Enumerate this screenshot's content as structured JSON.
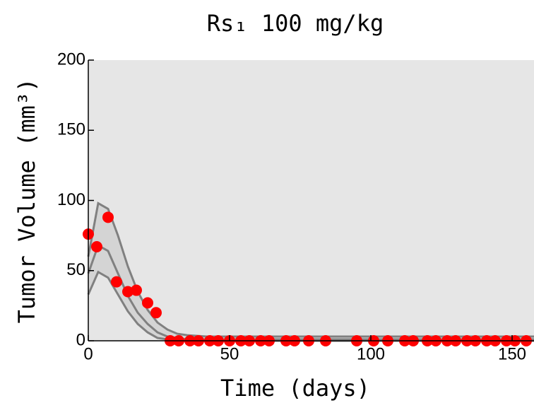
{
  "chart_data": {
    "type": "scatter",
    "title": "Rs₁ 100 mg/kg",
    "x_label": "Time (days)",
    "y_label": "Tumor Volume (mm³)",
    "xlim": [
      0,
      158
    ],
    "ylim": [
      0,
      200
    ],
    "xticks": [
      0,
      50,
      100,
      150
    ],
    "yticks": [
      0,
      50,
      100,
      150,
      200
    ],
    "background": "#e6e6e6",
    "band_color": "#d4d4d4",
    "lines": [
      {
        "color": "#808080",
        "x": [
          0,
          3.5,
          7,
          10.5,
          14,
          17.5,
          21,
          24.5,
          28,
          31.5,
          35,
          42,
          50,
          60,
          80,
          100,
          120,
          140,
          158
        ],
        "values": [
          60,
          98,
          94,
          75,
          53,
          35,
          22,
          13,
          8,
          5,
          4,
          3,
          3,
          3,
          3,
          3,
          3,
          3,
          3
        ]
      },
      {
        "color": "#808080",
        "x": [
          0,
          3.5,
          7,
          10.5,
          14,
          17.5,
          21,
          24.5,
          28,
          31.5,
          35,
          42,
          50,
          60,
          80,
          100,
          120,
          140,
          158
        ],
        "values": [
          48,
          68,
          64,
          48,
          32,
          20,
          12,
          6,
          3,
          2,
          1,
          1,
          1,
          1,
          1,
          1,
          1,
          1,
          1
        ]
      },
      {
        "color": "#808080",
        "x": [
          0,
          3.5,
          7,
          10.5,
          14,
          17.5,
          21,
          24.5,
          28,
          31.5,
          35,
          42,
          50,
          60,
          80,
          100,
          120,
          140,
          158
        ],
        "values": [
          33,
          49,
          45,
          33,
          21,
          12,
          6,
          2,
          1,
          0,
          0,
          0,
          0,
          0,
          0,
          0,
          0,
          0,
          0
        ]
      }
    ],
    "points": {
      "color": "#ff0000",
      "x": [
        0,
        3,
        7,
        10,
        14,
        17,
        21,
        24,
        29,
        32,
        36,
        39,
        43,
        46,
        50,
        54,
        57,
        61,
        64,
        70,
        73,
        78,
        84,
        95,
        101,
        106,
        112,
        115,
        120,
        123,
        127,
        130,
        134,
        137,
        141,
        144,
        148,
        151,
        155
      ],
      "values": [
        76,
        67,
        88,
        42,
        35,
        36,
        27,
        20,
        0,
        0,
        0,
        0,
        0,
        0,
        0,
        0,
        0,
        0,
        0,
        0,
        0,
        0,
        0,
        0,
        0,
        0,
        0,
        0,
        0,
        0,
        0,
        0,
        0,
        0,
        0,
        0,
        0,
        0,
        0
      ]
    }
  }
}
